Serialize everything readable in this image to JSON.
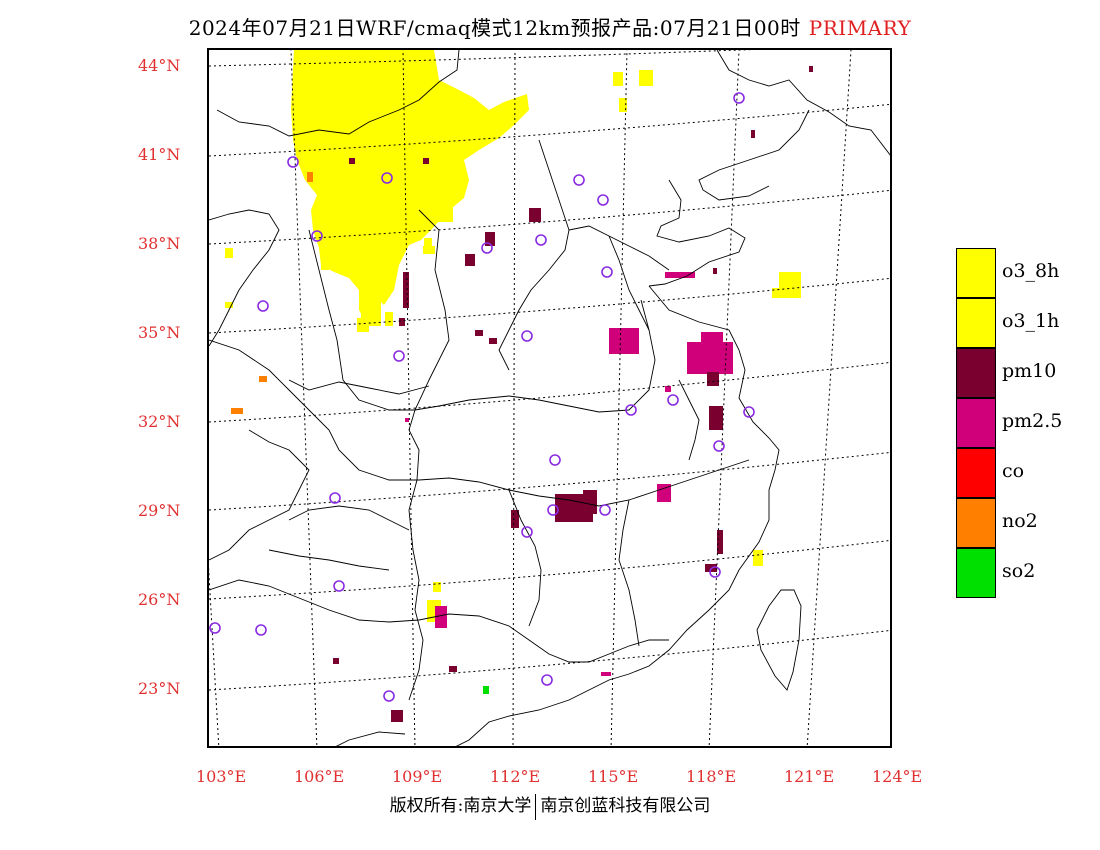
{
  "title": {
    "main": "2024年07月21日WRF/cmaq模式12km预报产品:07月21日00时",
    "tag": "PRIMARY"
  },
  "colors": {
    "o3_8h": "#ffff00",
    "o3_1h": "#ffff00",
    "pm10": "#7a0030",
    "pm25": "#d0007a",
    "co": "#ff0000",
    "no2": "#ff7f00",
    "so2": "#00e000",
    "axis_label": "#e03030",
    "station_circle": "#8a2be2"
  },
  "map": {
    "lat_labels": [
      "44°N",
      "41°N",
      "38°N",
      "35°N",
      "32°N",
      "29°N",
      "26°N",
      "23°N"
    ],
    "lon_labels": [
      "103°E",
      "106°E",
      "109°E",
      "112°E",
      "115°E",
      "118°E",
      "121°E",
      "124°E"
    ]
  },
  "legend": {
    "items": [
      {
        "label": "o3_8h",
        "color": "#ffff00"
      },
      {
        "label": "o3_1h",
        "color": "#ffff00"
      },
      {
        "label": "pm10",
        "color": "#7a0030"
      },
      {
        "label": "pm2.5",
        "color": "#d0007a"
      },
      {
        "label": "co",
        "color": "#ff0000"
      },
      {
        "label": "no2",
        "color": "#ff7f00"
      },
      {
        "label": "so2",
        "color": "#00e000"
      }
    ]
  },
  "footer": {
    "left": "版权所有:南京大学",
    "right": "南京创蓝科技有限公司"
  }
}
